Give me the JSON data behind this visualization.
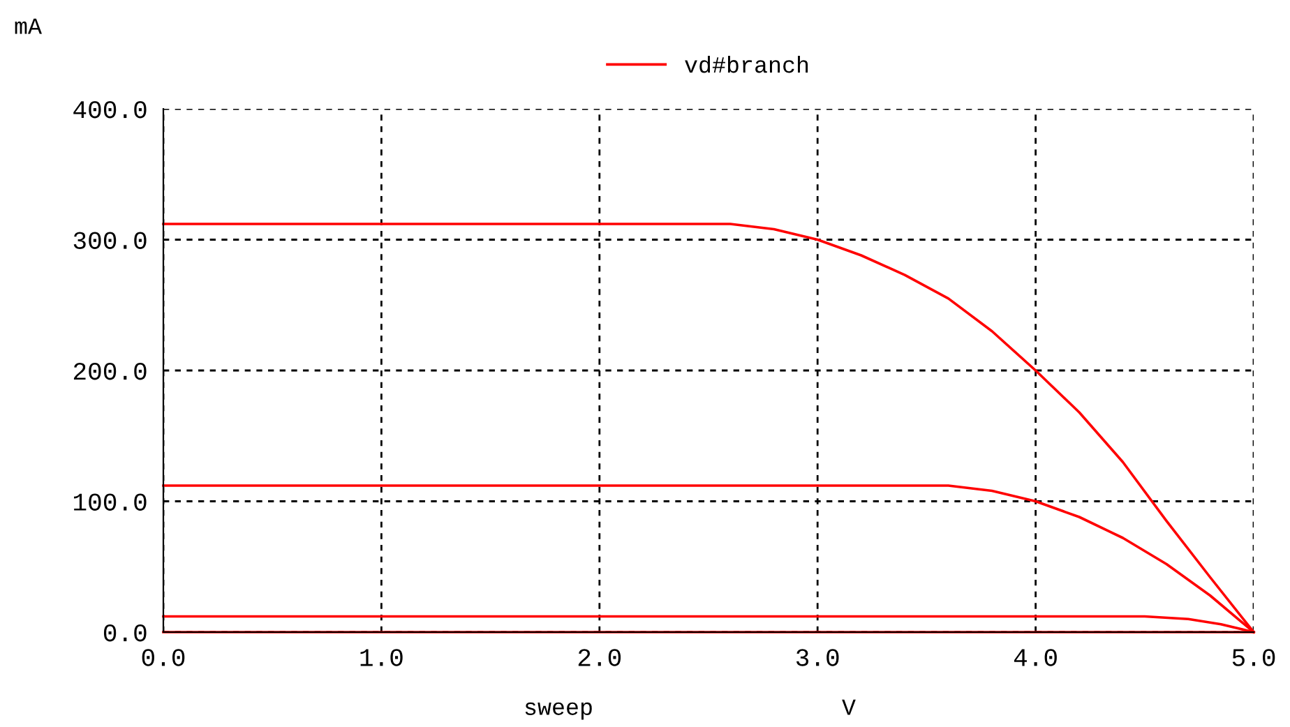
{
  "chart_data": {
    "type": "line",
    "ylabel": "mA",
    "xlabel": "sweep",
    "annotations": [
      "V"
    ],
    "xlim": [
      0,
      5
    ],
    "ylim": [
      0,
      400
    ],
    "xticks": [
      {
        "value": 0,
        "label": "0.0"
      },
      {
        "value": 1,
        "label": "1.0"
      },
      {
        "value": 2,
        "label": "2.0"
      },
      {
        "value": 3,
        "label": "3.0"
      },
      {
        "value": 4,
        "label": "4.0"
      },
      {
        "value": 5,
        "label": "5.0"
      }
    ],
    "yticks": [
      {
        "value": 0,
        "label": "0.0"
      },
      {
        "value": 100,
        "label": "100.0"
      },
      {
        "value": 200,
        "label": "200.0"
      },
      {
        "value": 300,
        "label": "300.0"
      },
      {
        "value": 400,
        "label": "400.0"
      }
    ],
    "grid": true,
    "legend": "top",
    "marker": "none",
    "line_style": "solid",
    "series": [
      {
        "name": "vd#branch",
        "color": "#ff0000",
        "x": [
          0,
          2.6,
          2.8,
          3.0,
          3.2,
          3.4,
          3.6,
          3.8,
          4.0,
          4.2,
          4.4,
          4.6,
          4.8,
          5.0
        ],
        "values": [
          312,
          312,
          308,
          300,
          288,
          273,
          255,
          230,
          200,
          168,
          130,
          85,
          42,
          0
        ]
      },
      {
        "color": "#ff0000",
        "x": [
          0,
          3.6,
          3.8,
          4.0,
          4.2,
          4.4,
          4.6,
          4.8,
          5.0
        ],
        "values": [
          112,
          112,
          108,
          100,
          88,
          72,
          52,
          28,
          0
        ]
      },
      {
        "color": "#ff0000",
        "x": [
          0,
          4.5,
          4.7,
          4.85,
          5.0
        ],
        "values": [
          12,
          12,
          10,
          6,
          0
        ]
      },
      {
        "color": "#ff0000",
        "x": [
          0,
          5.0
        ],
        "values": [
          0,
          0
        ]
      }
    ]
  }
}
